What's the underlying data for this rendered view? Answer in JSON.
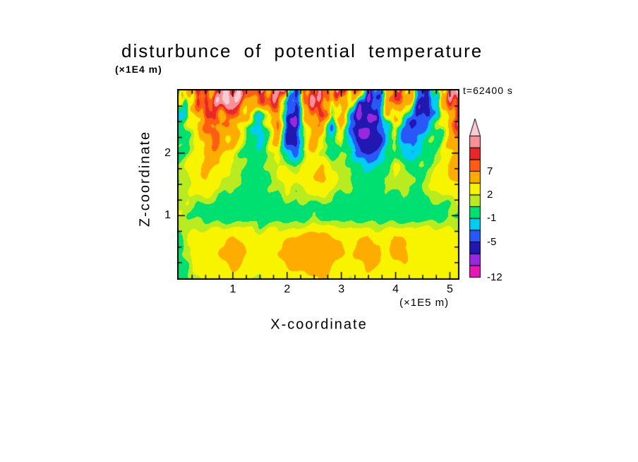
{
  "chart": {
    "title": "disturbunce of potential temperature",
    "timestamp": "t=62400 s",
    "xlabel": "X-coordinate",
    "ylabel": "Z-coordinate",
    "x_unit": "(×1E5 m)",
    "y_unit": "(×1E4 m)"
  },
  "chart_data": {
    "type": "heatmap",
    "title": "disturbunce of potential temperature",
    "time_label": "t=62400 s",
    "xlabel": "X-coordinate",
    "ylabel": "Z-coordinate",
    "x_unit": "(×1E5 m)",
    "y_unit": "(×1E4 m)",
    "x_range": [
      0,
      5.15
    ],
    "y_range": [
      0,
      3.0
    ],
    "x_ticks": [
      1,
      2,
      3,
      4,
      5
    ],
    "y_ticks": [
      1,
      2
    ],
    "grid": false,
    "legend_position": "right-colorbar",
    "colorbar": {
      "levels": [
        -12,
        -9,
        -7,
        -5,
        -3,
        -1,
        1,
        2,
        4,
        7,
        9,
        11,
        13
      ],
      "colors": [
        "#e818b8",
        "#9828e0",
        "#2018b0",
        "#2858f8",
        "#00ccf4",
        "#00e070",
        "#b8ec20",
        "#f8f400",
        "#ffac00",
        "#ff5c14",
        "#e82828",
        "#f89098",
        "#f8ccd4"
      ],
      "tick_labels": [
        {
          "text": "7",
          "level_index": 9
        },
        {
          "text": "2",
          "level_index": 7
        },
        {
          "text": "-1",
          "level_index": 5
        },
        {
          "text": "-5",
          "level_index": 3
        },
        {
          "text": "-12",
          "level_index": 0
        }
      ]
    },
    "values_note": "approximate field values on a 16x32 grid; row 0 = top (z~3 x1E4 m), col 0 = left (x~0); units match colorbar scale",
    "values": [
      [
        0,
        3,
        8,
        10,
        9,
        13,
        14,
        12,
        6,
        9,
        7,
        10,
        8,
        -6,
        10,
        8,
        12,
        7,
        9,
        5,
        8,
        -7,
        -6,
        6,
        10,
        8,
        5,
        -6,
        -5,
        2,
        9,
        11
      ],
      [
        0,
        2,
        6,
        9,
        10,
        12,
        13,
        10,
        5,
        7,
        8,
        9,
        -4,
        -7,
        8,
        10,
        9,
        4,
        7,
        2,
        -5,
        -7,
        -6,
        3,
        8,
        5,
        2,
        -6,
        -5,
        1,
        8,
        10
      ],
      [
        0,
        1,
        4,
        8,
        9,
        7,
        9,
        6,
        2,
        -2,
        4,
        8,
        -6,
        -7,
        4,
        9,
        10,
        2,
        5,
        -2,
        -6,
        -7,
        -7,
        2,
        6,
        2,
        -3,
        -6,
        -4,
        0,
        6,
        9
      ],
      [
        0,
        1,
        3,
        7,
        9,
        6,
        7,
        3,
        0,
        -3,
        3,
        7,
        -6,
        -7,
        3,
        7,
        5,
        -3,
        4,
        -3,
        -7,
        -7,
        -7,
        -2,
        3,
        -3,
        -5,
        -3,
        -1,
        1,
        5,
        9
      ],
      [
        0,
        1,
        3,
        6,
        8,
        5,
        5,
        2,
        -1,
        -2,
        2,
        5,
        -5,
        -6,
        2,
        6,
        3,
        -2,
        2,
        -2,
        -6,
        -7,
        -6,
        -2,
        1,
        -3,
        -4,
        -2,
        0,
        1,
        4,
        7
      ],
      [
        0,
        1,
        2,
        5,
        6,
        4,
        3,
        1,
        -1,
        -1,
        1,
        3,
        -2,
        -4,
        1,
        4,
        2,
        -1,
        1,
        -1,
        -4,
        -6,
        -4,
        -1,
        1,
        -2,
        -2,
        -1,
        0,
        1,
        3,
        6
      ],
      [
        1,
        2,
        3,
        5,
        4,
        3,
        2,
        1,
        0,
        0,
        1,
        2,
        2,
        1,
        2,
        3,
        4,
        2,
        1,
        1,
        -1,
        -2,
        -1,
        0,
        2,
        1,
        0,
        1,
        1,
        2,
        4,
        6
      ],
      [
        1,
        2,
        3,
        4,
        3,
        2,
        2,
        1,
        1,
        0,
        1,
        2,
        3,
        2,
        3,
        4,
        5,
        3,
        2,
        1,
        0,
        0,
        0,
        1,
        2,
        2,
        1,
        1,
        2,
        3,
        4,
        5
      ],
      [
        1,
        2,
        2,
        3,
        2,
        1,
        1,
        1,
        0,
        0,
        1,
        1,
        2,
        1,
        2,
        3,
        3,
        2,
        1,
        1,
        0,
        0,
        0,
        1,
        1,
        1,
        1,
        1,
        2,
        2,
        3,
        3
      ],
      [
        2,
        2,
        1,
        1,
        1,
        0,
        0,
        0,
        0,
        0,
        0,
        0,
        1,
        1,
        1,
        1,
        1,
        1,
        0,
        0,
        0,
        0,
        0,
        0,
        0,
        1,
        0,
        0,
        1,
        1,
        1,
        2
      ],
      [
        2,
        1,
        1,
        0,
        0,
        0,
        0,
        0,
        0,
        0,
        0,
        0,
        0,
        0,
        0,
        1,
        0,
        0,
        0,
        0,
        0,
        0,
        0,
        0,
        0,
        0,
        0,
        0,
        0,
        0,
        1,
        1
      ],
      [
        1,
        2,
        2,
        2,
        2,
        2,
        2,
        2,
        2,
        1,
        2,
        2,
        2,
        2,
        2,
        3,
        3,
        2,
        2,
        2,
        2,
        2,
        2,
        2,
        2,
        2,
        2,
        2,
        2,
        2,
        2,
        2
      ],
      [
        0,
        2,
        3,
        3,
        3,
        3,
        5,
        4,
        3,
        3,
        3,
        3,
        4,
        5,
        6,
        6,
        6,
        5,
        4,
        3,
        4,
        5,
        3,
        3,
        5,
        4,
        3,
        3,
        4,
        3,
        3,
        3
      ],
      [
        0,
        2,
        3,
        3,
        3,
        5,
        6,
        5,
        3,
        3,
        3,
        4,
        5,
        6,
        6,
        6,
        6,
        5,
        5,
        3,
        5,
        6,
        5,
        3,
        5,
        5,
        3,
        3,
        3,
        3,
        3,
        3
      ],
      [
        0,
        1,
        3,
        3,
        3,
        3,
        5,
        4,
        3,
        3,
        3,
        3,
        4,
        5,
        5,
        6,
        5,
        4,
        3,
        3,
        3,
        5,
        4,
        3,
        3,
        4,
        3,
        3,
        3,
        3,
        3,
        3
      ],
      [
        0,
        1,
        2,
        3,
        3,
        3,
        3,
        3,
        2,
        2,
        3,
        3,
        3,
        3,
        3,
        4,
        4,
        3,
        3,
        2,
        3,
        3,
        3,
        3,
        3,
        3,
        2,
        3,
        3,
        3,
        3,
        3
      ]
    ]
  }
}
